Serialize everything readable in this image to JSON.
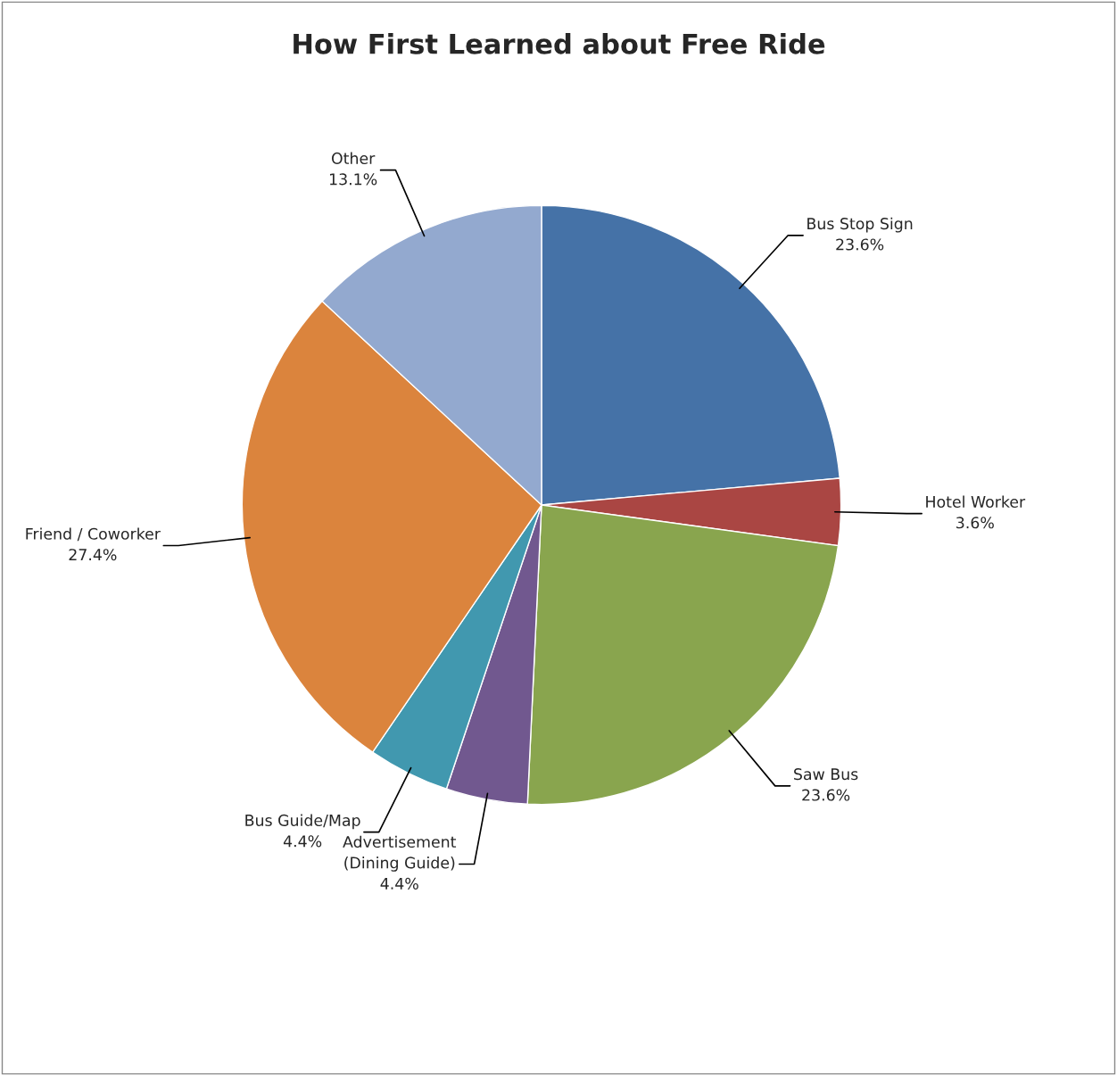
{
  "chart_data": {
    "type": "pie",
    "title": "How First Learned about Free Ride",
    "categories": [
      "Bus Stop Sign",
      "Hotel Worker",
      "Saw Bus",
      "Advertisement\n(Dining Guide)",
      "Bus Guide/Map",
      "Friend / Coworker",
      "Other"
    ],
    "values": [
      23.6,
      3.6,
      23.6,
      4.4,
      4.4,
      27.4,
      13.1
    ],
    "value_labels": [
      "23.6%",
      "3.6%",
      "23.6%",
      "4.4%",
      "4.4%",
      "27.4%",
      "13.1%"
    ],
    "colors": [
      "#4572a7",
      "#aa4643",
      "#89a54e",
      "#71588f",
      "#4198af",
      "#db843d",
      "#93a9cf"
    ],
    "legend": false
  }
}
